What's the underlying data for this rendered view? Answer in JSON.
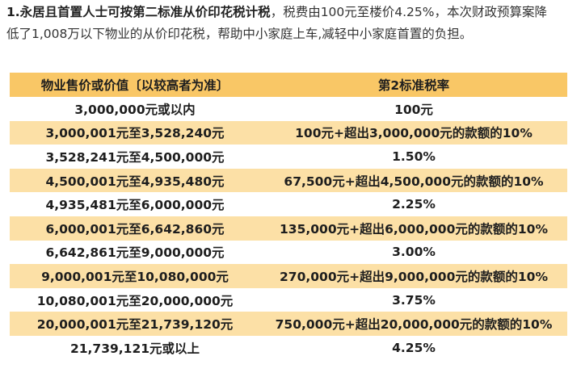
{
  "intro": {
    "heading": "1.永居且首置人士可按第二标准从价印花税计税",
    "line1_rest": "，税费由100元至楼价4.25%，本次财政预算案降",
    "line2": "低了1,008万以下物业的从价印花税，帮助中小家庭上车,减轻中小家庭首置的负担。"
  },
  "table": {
    "headers": [
      "物业售价或价值〔以较高者为准〕",
      "第2标准税率"
    ],
    "rows": [
      {
        "price": "3,000,000元或以内",
        "rate": "100元"
      },
      {
        "price": "3,000,001元至3,528,240元",
        "rate": "100元+超出3,000,000元的款额的10%"
      },
      {
        "price": "3,528,241元至4,500,000元",
        "rate": "1.50%"
      },
      {
        "price": "4,500,001元至4,935,480元",
        "rate": "67,500元+超出4,500,000元的款额的10%"
      },
      {
        "price": "4,935,481元至6,000,000元",
        "rate": "2.25%"
      },
      {
        "price": "6,000,001元至6,642,860元",
        "rate": "135,000元+超出6,000,000元的款额的10%"
      },
      {
        "price": "6,642,861元至9,000,000元",
        "rate": "3.00%"
      },
      {
        "price": "9,000,001元至10,080,000元",
        "rate": "270,000元+超出9,000,000元的款额的10%"
      },
      {
        "price": "10,080,001元至20,000,000元",
        "rate": "3.75%"
      },
      {
        "price": "20,000,001元至21,739,120元",
        "rate": "750,000元+超出20,000,000元的款额的10%"
      },
      {
        "price": "21,739,121元或以上",
        "rate": "4.25%"
      }
    ]
  },
  "colors": {
    "header_bg": "#f9c766",
    "band_bg": "#fce0a6",
    "plain_bg": "#ffffff"
  }
}
